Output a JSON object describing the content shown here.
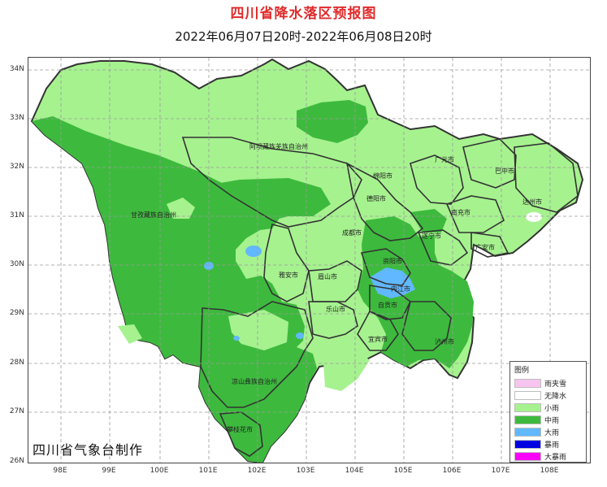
{
  "title": "四川省降水落区预报图",
  "subtitle": "2022年06月07日20时-2022年06月08日20时",
  "footer": "四川省气象台制作",
  "axes": {
    "lat_labels": [
      "34N",
      "33N",
      "32N",
      "31N",
      "30N",
      "29N",
      "28N",
      "27N",
      "26N"
    ],
    "lon_labels": [
      "98E",
      "99E",
      "100E",
      "101E",
      "102E",
      "103E",
      "104E",
      "105E",
      "106E",
      "107E",
      "108E"
    ]
  },
  "legend": {
    "title": "图例",
    "items": [
      {
        "label": "雨夹雪",
        "color": "#f7c4ef"
      },
      {
        "label": "无降水",
        "color": "#ffffff"
      },
      {
        "label": "小雨",
        "color": "#a6f28f"
      },
      {
        "label": "中雨",
        "color": "#3dba3d"
      },
      {
        "label": "大雨",
        "color": "#61b8ff"
      },
      {
        "label": "暴雨",
        "color": "#0000e1"
      },
      {
        "label": "大暴雨",
        "color": "#fa00fa"
      }
    ]
  },
  "prefecture_labels": [
    "阿坝藏族羌族自治州",
    "甘孜藏族自治州",
    "凉山彝族自治州",
    "攀枝花市",
    "雅安市",
    "眉山市",
    "乐山市",
    "成都市",
    "德阳市",
    "绵阳市",
    "广元市",
    "巴中市",
    "达州市",
    "南充市",
    "遂宁市",
    "广安市",
    "资阳市",
    "内江市",
    "自贡市",
    "宜宾市",
    "泸州市"
  ],
  "colors": {
    "light_rain": "#a6f28f",
    "moderate_rain": "#3dba3d",
    "heavy_rain": "#61b8ff",
    "no_rain": "#ffffff",
    "grid": "#9a9a9a",
    "border": "#333333",
    "title_red": "#e02b2b"
  }
}
